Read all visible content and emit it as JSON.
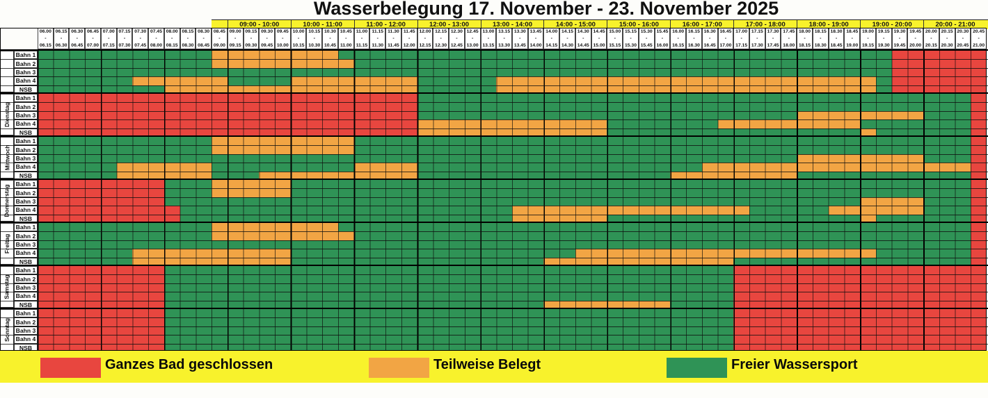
{
  "title": "Wasserbelegung 17. November - 23. November 2025",
  "colors": {
    "closed": "#e8463f",
    "partial": "#f2a544",
    "free": "#2f9356",
    "band": "#f8f22c",
    "line": "#1a1a1a"
  },
  "legend": [
    {
      "label": "Ganzes Bad geschlossen",
      "key": "closed"
    },
    {
      "label": "Teilweise Belegt",
      "key": "partial"
    },
    {
      "label": "Freier Wassersport",
      "key": "free"
    }
  ],
  "lane_labels": [
    "Bahn 1",
    "Bahn 2",
    "Bahn 3",
    "Bahn 4",
    "NSB"
  ],
  "hour_groups": [
    "09:00 - 10:00",
    "10:00 - 11:00",
    "11:00 - 12:00",
    "12:00 - 13:00",
    "13:00 - 14:00",
    "14:00 - 15:00",
    "15:00 - 16:00",
    "16:00 - 17:00",
    "17:00 - 18:00",
    "18:00 - 19:00",
    "19:00 - 20:00",
    "20:00 - 21:00"
  ],
  "slot_times": [
    "06.00",
    "06.15",
    "06.30",
    "06.45",
    "07.00",
    "07.15",
    "07.30",
    "07.45",
    "08.00",
    "08.15",
    "08.30",
    "08.45",
    "09.00",
    "09.15",
    "09.30",
    "09.45",
    "10.00",
    "10.15",
    "10.30",
    "10.45",
    "11.00",
    "11.15",
    "11.30",
    "11.45",
    "12.00",
    "12.15",
    "12.30",
    "12.45",
    "13.00",
    "13.15",
    "13.30",
    "13.45",
    "14.00",
    "14.15",
    "14.30",
    "14.45",
    "15.00",
    "15.15",
    "15.30",
    "15.45",
    "16.00",
    "16.15",
    "16.30",
    "16.45",
    "17.00",
    "17.15",
    "17.30",
    "17.45",
    "18.00",
    "18.15",
    "18.30",
    "18.45",
    "19.00",
    "19.15",
    "19.30",
    "19.45",
    "20.00",
    "20.15",
    "20.30",
    "20.45",
    "21.00"
  ],
  "slot_separator": "-",
  "days": [
    {
      "label": "",
      "rows": [
        {
          "segments": [
            [
              0,
              11,
              "free"
            ],
            [
              11,
              19,
              "partial"
            ],
            [
              19,
              54,
              "free"
            ],
            [
              54,
              60,
              "closed"
            ]
          ]
        },
        {
          "segments": [
            [
              0,
              11,
              "free"
            ],
            [
              11,
              20,
              "partial"
            ],
            [
              20,
              54,
              "free"
            ],
            [
              54,
              60,
              "closed"
            ]
          ]
        },
        {
          "segments": [
            [
              0,
              54,
              "free"
            ],
            [
              54,
              60,
              "closed"
            ]
          ]
        },
        {
          "segments": [
            [
              0,
              6,
              "free"
            ],
            [
              6,
              12,
              "partial"
            ],
            [
              12,
              16,
              "free"
            ],
            [
              16,
              24,
              "partial"
            ],
            [
              24,
              29,
              "free"
            ],
            [
              29,
              53,
              "partial"
            ],
            [
              53,
              54,
              "free"
            ],
            [
              54,
              60,
              "closed"
            ]
          ]
        },
        {
          "segments": [
            [
              0,
              8,
              "free"
            ],
            [
              8,
              24,
              "partial"
            ],
            [
              24,
              29,
              "free"
            ],
            [
              29,
              53,
              "partial"
            ],
            [
              53,
              54,
              "free"
            ],
            [
              54,
              60,
              "closed"
            ]
          ]
        }
      ]
    },
    {
      "label": "Dienstag",
      "rows": [
        {
          "segments": [
            [
              0,
              24,
              "closed"
            ],
            [
              24,
              59,
              "free"
            ],
            [
              59,
              60,
              "closed"
            ]
          ]
        },
        {
          "segments": [
            [
              0,
              24,
              "closed"
            ],
            [
              24,
              59,
              "free"
            ],
            [
              59,
              60,
              "closed"
            ]
          ]
        },
        {
          "segments": [
            [
              0,
              24,
              "closed"
            ],
            [
              24,
              48,
              "free"
            ],
            [
              48,
              56,
              "partial"
            ],
            [
              56,
              59,
              "free"
            ],
            [
              59,
              60,
              "closed"
            ]
          ]
        },
        {
          "segments": [
            [
              0,
              24,
              "closed"
            ],
            [
              24,
              36,
              "partial"
            ],
            [
              36,
              43,
              "free"
            ],
            [
              43,
              52,
              "partial"
            ],
            [
              52,
              59,
              "free"
            ],
            [
              59,
              60,
              "closed"
            ]
          ]
        },
        {
          "segments": [
            [
              0,
              24,
              "closed"
            ],
            [
              24,
              36,
              "partial"
            ],
            [
              36,
              52,
              "free"
            ],
            [
              52,
              53,
              "partial"
            ],
            [
              53,
              59,
              "free"
            ],
            [
              59,
              60,
              "closed"
            ]
          ]
        }
      ]
    },
    {
      "label": "Mittwoch",
      "rows": [
        {
          "segments": [
            [
              0,
              11,
              "free"
            ],
            [
              11,
              20,
              "partial"
            ],
            [
              20,
              59,
              "free"
            ],
            [
              59,
              60,
              "closed"
            ]
          ]
        },
        {
          "segments": [
            [
              0,
              11,
              "free"
            ],
            [
              11,
              20,
              "partial"
            ],
            [
              20,
              59,
              "free"
            ],
            [
              59,
              60,
              "closed"
            ]
          ]
        },
        {
          "segments": [
            [
              0,
              48,
              "free"
            ],
            [
              48,
              56,
              "partial"
            ],
            [
              56,
              59,
              "free"
            ],
            [
              59,
              60,
              "closed"
            ]
          ]
        },
        {
          "segments": [
            [
              0,
              5,
              "free"
            ],
            [
              5,
              11,
              "partial"
            ],
            [
              11,
              20,
              "free"
            ],
            [
              20,
              24,
              "partial"
            ],
            [
              24,
              42,
              "free"
            ],
            [
              42,
              59,
              "partial"
            ],
            [
              59,
              60,
              "closed"
            ]
          ]
        },
        {
          "segments": [
            [
              0,
              5,
              "free"
            ],
            [
              5,
              11,
              "partial"
            ],
            [
              11,
              14,
              "free"
            ],
            [
              14,
              24,
              "partial"
            ],
            [
              24,
              40,
              "free"
            ],
            [
              40,
              48,
              "partial"
            ],
            [
              48,
              59,
              "free"
            ],
            [
              59,
              60,
              "closed"
            ]
          ]
        }
      ]
    },
    {
      "label": "Donnerstag",
      "rows": [
        {
          "segments": [
            [
              0,
              8,
              "closed"
            ],
            [
              8,
              11,
              "free"
            ],
            [
              11,
              16,
              "partial"
            ],
            [
              16,
              59,
              "free"
            ],
            [
              59,
              60,
              "closed"
            ]
          ]
        },
        {
          "segments": [
            [
              0,
              8,
              "closed"
            ],
            [
              8,
              11,
              "free"
            ],
            [
              11,
              16,
              "partial"
            ],
            [
              16,
              59,
              "free"
            ],
            [
              59,
              60,
              "closed"
            ]
          ]
        },
        {
          "segments": [
            [
              0,
              8,
              "closed"
            ],
            [
              8,
              52,
              "free"
            ],
            [
              52,
              56,
              "partial"
            ],
            [
              56,
              59,
              "free"
            ],
            [
              59,
              60,
              "closed"
            ]
          ]
        },
        {
          "segments": [
            [
              0,
              9,
              "closed"
            ],
            [
              9,
              30,
              "free"
            ],
            [
              30,
              45,
              "partial"
            ],
            [
              45,
              50,
              "free"
            ],
            [
              50,
              56,
              "partial"
            ],
            [
              56,
              59,
              "free"
            ],
            [
              59,
              60,
              "closed"
            ]
          ]
        },
        {
          "segments": [
            [
              0,
              9,
              "closed"
            ],
            [
              9,
              30,
              "free"
            ],
            [
              30,
              36,
              "partial"
            ],
            [
              36,
              52,
              "free"
            ],
            [
              52,
              53,
              "partial"
            ],
            [
              53,
              59,
              "free"
            ],
            [
              59,
              60,
              "closed"
            ]
          ]
        }
      ]
    },
    {
      "label": "Freitag",
      "rows": [
        {
          "segments": [
            [
              0,
              11,
              "free"
            ],
            [
              11,
              19,
              "partial"
            ],
            [
              19,
              59,
              "free"
            ],
            [
              59,
              60,
              "closed"
            ]
          ]
        },
        {
          "segments": [
            [
              0,
              11,
              "free"
            ],
            [
              11,
              20,
              "partial"
            ],
            [
              20,
              59,
              "free"
            ],
            [
              59,
              60,
              "closed"
            ]
          ]
        },
        {
          "segments": [
            [
              0,
              59,
              "free"
            ],
            [
              59,
              60,
              "closed"
            ]
          ]
        },
        {
          "segments": [
            [
              0,
              6,
              "free"
            ],
            [
              6,
              16,
              "partial"
            ],
            [
              16,
              34,
              "free"
            ],
            [
              34,
              53,
              "partial"
            ],
            [
              53,
              59,
              "free"
            ],
            [
              59,
              60,
              "closed"
            ]
          ]
        },
        {
          "segments": [
            [
              0,
              6,
              "free"
            ],
            [
              6,
              16,
              "partial"
            ],
            [
              16,
              32,
              "free"
            ],
            [
              32,
              44,
              "partial"
            ],
            [
              44,
              59,
              "free"
            ],
            [
              59,
              60,
              "closed"
            ]
          ]
        }
      ]
    },
    {
      "label": "Samstag",
      "rows": [
        {
          "segments": [
            [
              0,
              8,
              "closed"
            ],
            [
              8,
              44,
              "free"
            ],
            [
              44,
              60,
              "closed"
            ]
          ]
        },
        {
          "segments": [
            [
              0,
              8,
              "closed"
            ],
            [
              8,
              44,
              "free"
            ],
            [
              44,
              60,
              "closed"
            ]
          ]
        },
        {
          "segments": [
            [
              0,
              8,
              "closed"
            ],
            [
              8,
              44,
              "free"
            ],
            [
              44,
              60,
              "closed"
            ]
          ]
        },
        {
          "segments": [
            [
              0,
              8,
              "closed"
            ],
            [
              8,
              44,
              "free"
            ],
            [
              44,
              60,
              "closed"
            ]
          ]
        },
        {
          "segments": [
            [
              0,
              8,
              "closed"
            ],
            [
              8,
              32,
              "free"
            ],
            [
              32,
              40,
              "partial"
            ],
            [
              40,
              44,
              "free"
            ],
            [
              44,
              60,
              "closed"
            ]
          ]
        }
      ]
    },
    {
      "label": "Sonntag",
      "rows": [
        {
          "segments": [
            [
              0,
              8,
              "closed"
            ],
            [
              8,
              44,
              "free"
            ],
            [
              44,
              60,
              "closed"
            ]
          ]
        },
        {
          "segments": [
            [
              0,
              8,
              "closed"
            ],
            [
              8,
              44,
              "free"
            ],
            [
              44,
              60,
              "closed"
            ]
          ]
        },
        {
          "segments": [
            [
              0,
              8,
              "closed"
            ],
            [
              8,
              44,
              "free"
            ],
            [
              44,
              60,
              "closed"
            ]
          ]
        },
        {
          "segments": [
            [
              0,
              8,
              "closed"
            ],
            [
              8,
              44,
              "free"
            ],
            [
              44,
              60,
              "closed"
            ]
          ]
        },
        {
          "segments": [
            [
              0,
              8,
              "closed"
            ],
            [
              8,
              44,
              "free"
            ],
            [
              44,
              60,
              "closed"
            ]
          ]
        }
      ]
    }
  ]
}
